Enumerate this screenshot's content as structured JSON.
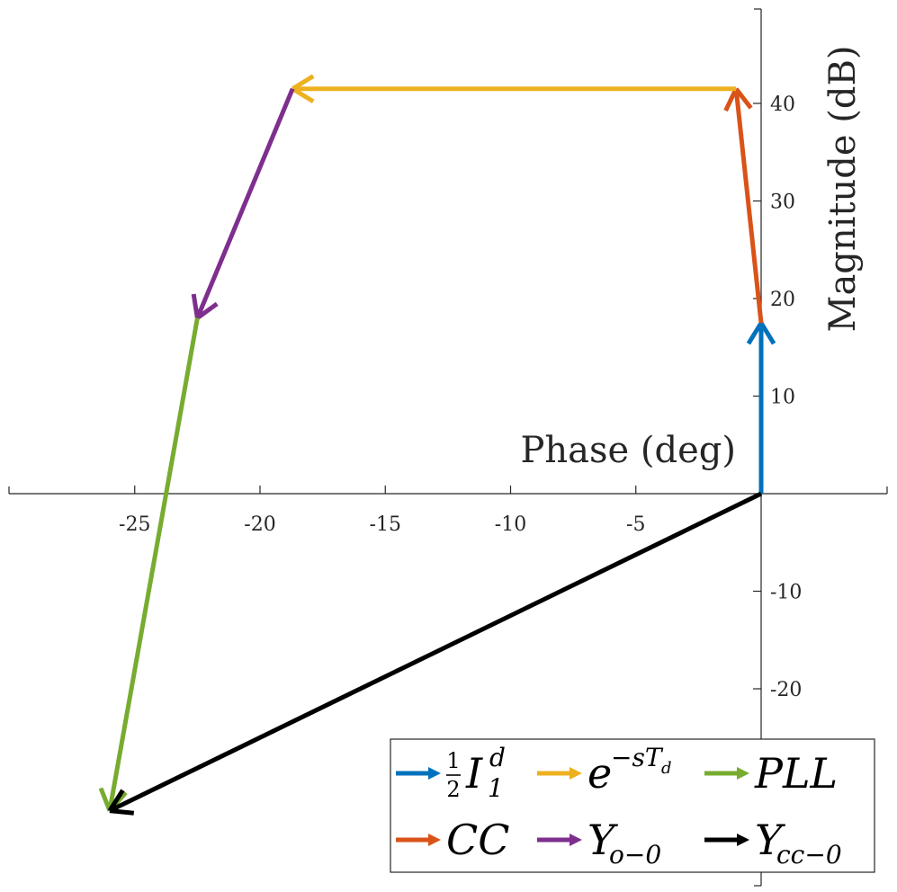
{
  "chart_data": {
    "type": "line",
    "xlabel": "Phase (deg)",
    "ylabel": "Magnitude (dB)",
    "xlim": [
      -30,
      5
    ],
    "ylim": [
      -40,
      50
    ],
    "xticks": [
      -25,
      -20,
      -15,
      -10,
      -5
    ],
    "yticks": [
      -20,
      -10,
      10,
      20,
      30,
      40
    ],
    "grid": false,
    "legend_placement": "bottom-right",
    "series": [
      {
        "name": "½ I₁ᵈ",
        "label_main": "I",
        "label_sup": "d",
        "label_sub": "1",
        "label_frac_num": "1",
        "label_frac_den": "2",
        "color": "#0072BD",
        "from": [
          0,
          0
        ],
        "to": [
          0,
          17.5
        ]
      },
      {
        "name": "CC",
        "label_main": "CC",
        "color": "#D95319",
        "from": [
          0,
          17.5
        ],
        "to": [
          -1,
          41.5
        ]
      },
      {
        "name": "e^(−sT_d)",
        "label_main": "e",
        "label_sup": "−sT",
        "label_supsub": "d",
        "color": "#EDB120",
        "from": [
          -1,
          41.5
        ],
        "to": [
          -18.7,
          41.5
        ]
      },
      {
        "name": "Y_(o−0)",
        "label_main": "Y",
        "label_sub": "o−0",
        "color": "#7E2F8E",
        "from": [
          -18.7,
          41.5
        ],
        "to": [
          -22.5,
          18
        ]
      },
      {
        "name": "PLL",
        "label_main": "PLL",
        "color": "#77AC30",
        "from": [
          -22.5,
          18
        ],
        "to": [
          -26,
          -32.5
        ]
      },
      {
        "name": "Y_(cc−0)",
        "label_main": "Y",
        "label_sub": "cc−0",
        "color": "#000000",
        "from": [
          0,
          0
        ],
        "to": [
          -26,
          -32.5
        ]
      }
    ]
  }
}
